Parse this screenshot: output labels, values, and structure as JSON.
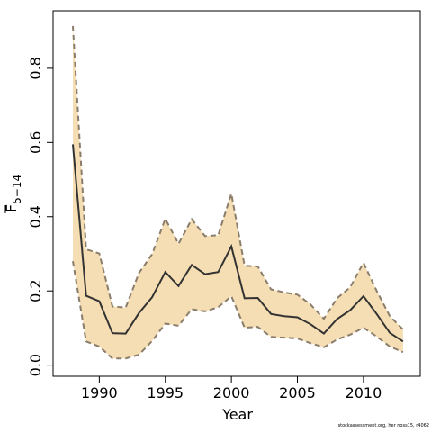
{
  "chart_data": {
    "type": "line",
    "xlabel": "Year",
    "ylabel_main": "F",
    "ylabel_sub": "5−14",
    "xlim": [
      1986.5,
      2014.3
    ],
    "ylim": [
      -0.03,
      0.955
    ],
    "x_ticks": [
      1990,
      1995,
      2000,
      2005,
      2010
    ],
    "y_ticks": [
      0.0,
      0.2,
      0.4,
      0.6,
      0.8
    ],
    "y_tick_labels": [
      "0.0",
      "0.2",
      "0.4",
      "0.6",
      "0.8"
    ],
    "grid": false,
    "colors": {
      "band": "#f5deb3",
      "bound_line": "#8b7d6b",
      "estimate_line": "#333333"
    },
    "x": [
      1988,
      1989,
      1990,
      1991,
      1992,
      1993,
      1994,
      1995,
      1996,
      1997,
      1998,
      1999,
      2000,
      2001,
      2002,
      2003,
      2004,
      2005,
      2006,
      2007,
      2008,
      2009,
      2010,
      2011,
      2012,
      2013
    ],
    "series": [
      {
        "role": "estimate",
        "values": [
          0.595,
          0.187,
          0.172,
          0.086,
          0.085,
          0.14,
          0.183,
          0.251,
          0.213,
          0.27,
          0.245,
          0.251,
          0.32,
          0.18,
          0.181,
          0.138,
          0.132,
          0.129,
          0.11,
          0.085,
          0.124,
          0.148,
          0.186,
          0.138,
          0.087,
          0.064
        ]
      },
      {
        "role": "upper",
        "values": [
          0.914,
          0.312,
          0.301,
          0.158,
          0.155,
          0.248,
          0.299,
          0.394,
          0.327,
          0.393,
          0.348,
          0.35,
          0.462,
          0.268,
          0.266,
          0.204,
          0.196,
          0.19,
          0.163,
          0.125,
          0.18,
          0.21,
          0.276,
          0.2,
          0.132,
          0.096
        ]
      },
      {
        "role": "lower",
        "values": [
          0.28,
          0.064,
          0.05,
          0.018,
          0.018,
          0.028,
          0.065,
          0.112,
          0.106,
          0.151,
          0.145,
          0.156,
          0.186,
          0.101,
          0.103,
          0.076,
          0.074,
          0.072,
          0.059,
          0.048,
          0.069,
          0.082,
          0.101,
          0.077,
          0.05,
          0.035
        ]
      }
    ]
  },
  "footnote": "stockassessment.org, her noss15, r4062"
}
